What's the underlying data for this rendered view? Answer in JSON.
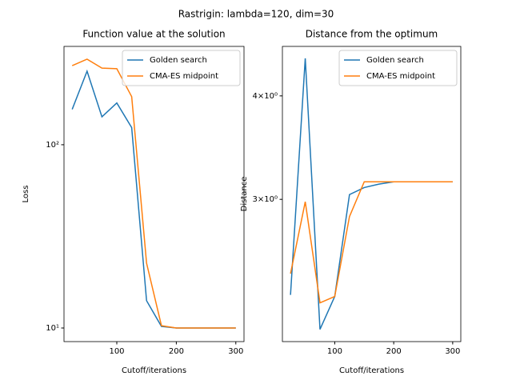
{
  "title": "Rastrigin: lambda=120, dim=30",
  "chart_data": [
    {
      "type": "line",
      "title": "Function value at the solution",
      "x_label": "Cutoff/iterations",
      "y_label": "Loss",
      "x": [
        25,
        50,
        75,
        100,
        125,
        150,
        175,
        200,
        225,
        250,
        275,
        300
      ],
      "series": [
        {
          "name": "Golden search",
          "color": "#1f77b4",
          "values": [
            156,
            252,
            142,
            169,
            124,
            14.1,
            10.2,
            10,
            10,
            10,
            10,
            10
          ]
        },
        {
          "name": "CMA-ES midpoint",
          "color": "#ff7f0e",
          "values": [
            270,
            293,
            262,
            260,
            183,
            22.6,
            10.3,
            10,
            10,
            10,
            10,
            10
          ]
        }
      ],
      "xlim": [
        11.25,
        313.75
      ],
      "xticks": [
        100,
        200,
        300
      ],
      "ylim": [
        8.43,
        344
      ],
      "yticks": [
        {
          "value": 10,
          "label": "10¹"
        },
        {
          "value": 100,
          "label": "10²"
        }
      ],
      "y_scale": "log",
      "legend": "upper right"
    },
    {
      "type": "line",
      "title": "Distance from the optimum",
      "x_label": "Cutoff/iterations",
      "y_label": "Distance",
      "x": [
        25,
        50,
        75,
        100,
        125,
        150,
        175,
        200,
        225,
        250,
        275,
        300
      ],
      "series": [
        {
          "name": "Golden search",
          "color": "#1f77b4",
          "values": [
            2.3,
            4.44,
            2.09,
            2.29,
            3.04,
            3.1,
            3.13,
            3.15,
            3.15,
            3.15,
            3.15,
            3.15
          ]
        },
        {
          "name": "CMA-ES midpoint",
          "color": "#ff7f0e",
          "values": [
            2.44,
            2.98,
            2.25,
            2.29,
            2.86,
            3.15,
            3.15,
            3.15,
            3.15,
            3.15,
            3.15,
            3.15
          ]
        }
      ],
      "xlim": [
        11.25,
        313.75
      ],
      "xticks": [
        100,
        200,
        300
      ],
      "ylim": [
        2.02,
        4.59
      ],
      "yticks": [
        {
          "value": 3,
          "label": "3×10⁰"
        },
        {
          "value": 4,
          "label": "4×10⁰"
        }
      ],
      "y_scale": "log",
      "legend": "upper right"
    }
  ]
}
